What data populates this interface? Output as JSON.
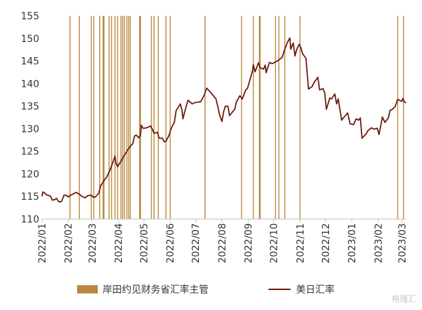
{
  "chart_data": {
    "type": "line",
    "xlabel": "",
    "ylabel": "",
    "ylim": [
      110,
      155
    ],
    "yticks": [
      110,
      115,
      120,
      125,
      130,
      135,
      140,
      145,
      150,
      155
    ],
    "xlim": [
      "2022-01-01",
      "2023-03-06"
    ],
    "xticks": [
      "2022/01",
      "2022/02",
      "2022/03",
      "2022/04",
      "2022/05",
      "2022/06",
      "2022/07",
      "2022/08",
      "2022/09",
      "2022/10",
      "2022/11",
      "2022/12",
      "2023/01",
      "2023/02",
      "2023/03"
    ],
    "grid": false,
    "legend_position": "bottom",
    "legend": [
      {
        "name": "岸田约见财务省汇率主管",
        "color": "#b8893e",
        "kind": "bar"
      },
      {
        "name": "美日汇率",
        "color": "#6b1a0c",
        "kind": "line"
      }
    ],
    "event_dates": [
      "2022-02-03",
      "2022-02-14",
      "2022-02-28",
      "2022-03-03",
      "2022-03-10",
      "2022-03-14",
      "2022-03-15",
      "2022-03-21",
      "2022-03-24",
      "2022-03-28",
      "2022-03-31",
      "2022-04-04",
      "2022-04-06",
      "2022-04-08",
      "2022-04-11",
      "2022-04-13",
      "2022-04-15",
      "2022-04-26",
      "2022-04-27",
      "2022-05-10",
      "2022-05-13",
      "2022-05-18",
      "2022-05-27",
      "2022-06-01",
      "2022-07-12",
      "2022-08-24",
      "2022-09-07",
      "2022-09-14",
      "2022-09-15",
      "2022-10-03",
      "2022-10-07",
      "2022-10-14",
      "2022-11-01",
      "2023-02-24",
      "2023-03-03"
    ],
    "series": [
      {
        "name": "美日汇率",
        "color": "#6b1a0c",
        "points": [
          [
            "2022-01-01",
            115.0
          ],
          [
            "2022-01-02",
            116.0
          ],
          [
            "2022-01-04",
            115.8
          ],
          [
            "2022-01-06",
            115.4
          ],
          [
            "2022-01-09",
            115.2
          ],
          [
            "2022-01-11",
            115.1
          ],
          [
            "2022-01-13",
            114.2
          ],
          [
            "2022-01-16",
            114.3
          ],
          [
            "2022-01-18",
            114.6
          ],
          [
            "2022-01-21",
            113.8
          ],
          [
            "2022-01-24",
            113.9
          ],
          [
            "2022-01-27",
            115.3
          ],
          [
            "2022-01-30",
            115.2
          ],
          [
            "2022-02-01",
            114.9
          ],
          [
            "2022-02-04",
            115.3
          ],
          [
            "2022-02-07",
            115.6
          ],
          [
            "2022-02-10",
            115.9
          ],
          [
            "2022-02-14",
            115.5
          ],
          [
            "2022-02-17",
            115.0
          ],
          [
            "2022-02-21",
            114.7
          ],
          [
            "2022-02-24",
            115.2
          ],
          [
            "2022-02-28",
            115.3
          ],
          [
            "2022-03-02",
            114.9
          ],
          [
            "2022-03-04",
            114.8
          ],
          [
            "2022-03-07",
            115.3
          ],
          [
            "2022-03-09",
            115.8
          ],
          [
            "2022-03-11",
            117.3
          ],
          [
            "2022-03-14",
            118.2
          ],
          [
            "2022-03-16",
            118.8
          ],
          [
            "2022-03-18",
            119.2
          ],
          [
            "2022-03-22",
            120.8
          ],
          [
            "2022-03-24",
            121.8
          ],
          [
            "2022-03-28",
            123.9
          ],
          [
            "2022-03-29",
            122.5
          ],
          [
            "2022-03-31",
            121.6
          ],
          [
            "2022-04-04",
            122.8
          ],
          [
            "2022-04-07",
            123.8
          ],
          [
            "2022-04-11",
            125.0
          ],
          [
            "2022-04-14",
            125.9
          ],
          [
            "2022-04-18",
            126.7
          ],
          [
            "2022-04-20",
            128.4
          ],
          [
            "2022-04-22",
            128.6
          ],
          [
            "2022-04-25",
            128.0
          ],
          [
            "2022-04-27",
            128.5
          ],
          [
            "2022-04-28",
            130.8
          ],
          [
            "2022-04-30",
            130.1
          ],
          [
            "2022-05-04",
            130.2
          ],
          [
            "2022-05-09",
            130.6
          ],
          [
            "2022-05-11",
            129.9
          ],
          [
            "2022-05-13",
            129.0
          ],
          [
            "2022-05-17",
            129.2
          ],
          [
            "2022-05-19",
            127.9
          ],
          [
            "2022-05-23",
            127.9
          ],
          [
            "2022-05-25",
            127.1
          ],
          [
            "2022-05-27",
            127.2
          ],
          [
            "2022-05-31",
            128.7
          ],
          [
            "2022-06-02",
            130.0
          ],
          [
            "2022-06-06",
            131.5
          ],
          [
            "2022-06-08",
            134.0
          ],
          [
            "2022-06-10",
            134.6
          ],
          [
            "2022-06-13",
            135.5
          ],
          [
            "2022-06-15",
            134.0
          ],
          [
            "2022-06-16",
            132.2
          ],
          [
            "2022-06-20",
            135.1
          ],
          [
            "2022-06-22",
            136.3
          ],
          [
            "2022-06-27",
            135.5
          ],
          [
            "2022-06-30",
            135.8
          ],
          [
            "2022-07-04",
            135.9
          ],
          [
            "2022-07-07",
            136.0
          ],
          [
            "2022-07-11",
            137.4
          ],
          [
            "2022-07-14",
            139.0
          ],
          [
            "2022-07-18",
            138.2
          ],
          [
            "2022-07-21",
            137.5
          ],
          [
            "2022-07-25",
            136.6
          ],
          [
            "2022-07-28",
            134.2
          ],
          [
            "2022-07-29",
            133.2
          ],
          [
            "2022-08-01",
            131.6
          ],
          [
            "2022-08-03",
            133.8
          ],
          [
            "2022-08-05",
            135.0
          ],
          [
            "2022-08-08",
            135.0
          ],
          [
            "2022-08-10",
            132.9
          ],
          [
            "2022-08-12",
            133.4
          ],
          [
            "2022-08-16",
            134.3
          ],
          [
            "2022-08-18",
            135.9
          ],
          [
            "2022-08-22",
            137.3
          ],
          [
            "2022-08-25",
            136.6
          ],
          [
            "2022-08-29",
            138.6
          ],
          [
            "2022-08-31",
            138.9
          ],
          [
            "2022-09-02",
            140.2
          ],
          [
            "2022-09-06",
            142.8
          ],
          [
            "2022-09-07",
            144.2
          ],
          [
            "2022-09-09",
            142.6
          ],
          [
            "2022-09-13",
            144.6
          ],
          [
            "2022-09-15",
            143.5
          ],
          [
            "2022-09-19",
            143.2
          ],
          [
            "2022-09-21",
            144.1
          ],
          [
            "2022-09-22",
            142.4
          ],
          [
            "2022-09-26",
            144.7
          ],
          [
            "2022-09-29",
            144.4
          ],
          [
            "2022-10-03",
            144.8
          ],
          [
            "2022-10-06",
            145.1
          ],
          [
            "2022-10-11",
            145.8
          ],
          [
            "2022-10-13",
            147.1
          ],
          [
            "2022-10-17",
            149.1
          ],
          [
            "2022-10-20",
            150.1
          ],
          [
            "2022-10-21",
            147.6
          ],
          [
            "2022-10-24",
            149.0
          ],
          [
            "2022-10-26",
            146.1
          ],
          [
            "2022-10-28",
            147.5
          ],
          [
            "2022-10-31",
            148.7
          ],
          [
            "2022-11-02",
            147.9
          ],
          [
            "2022-11-04",
            146.6
          ],
          [
            "2022-11-08",
            145.6
          ],
          [
            "2022-11-10",
            140.9
          ],
          [
            "2022-11-11",
            138.8
          ],
          [
            "2022-11-15",
            139.3
          ],
          [
            "2022-11-18",
            140.4
          ],
          [
            "2022-11-22",
            141.4
          ],
          [
            "2022-11-24",
            138.6
          ],
          [
            "2022-11-28",
            138.9
          ],
          [
            "2022-11-30",
            138.0
          ],
          [
            "2022-12-02",
            134.3
          ],
          [
            "2022-12-06",
            136.8
          ],
          [
            "2022-12-08",
            136.6
          ],
          [
            "2022-12-12",
            137.7
          ],
          [
            "2022-12-14",
            135.5
          ],
          [
            "2022-12-16",
            136.6
          ],
          [
            "2022-12-20",
            131.9
          ],
          [
            "2022-12-22",
            132.4
          ],
          [
            "2022-12-27",
            133.5
          ],
          [
            "2022-12-30",
            131.1
          ],
          [
            "2023-01-03",
            130.9
          ],
          [
            "2023-01-06",
            132.2
          ],
          [
            "2023-01-09",
            131.9
          ],
          [
            "2023-01-11",
            132.4
          ],
          [
            "2023-01-13",
            127.9
          ],
          [
            "2023-01-16",
            128.5
          ],
          [
            "2023-01-18",
            128.9
          ],
          [
            "2023-01-20",
            129.6
          ],
          [
            "2023-01-24",
            130.2
          ],
          [
            "2023-01-27",
            129.9
          ],
          [
            "2023-01-31",
            130.1
          ],
          [
            "2023-02-02",
            128.7
          ],
          [
            "2023-02-06",
            132.6
          ],
          [
            "2023-02-09",
            131.4
          ],
          [
            "2023-02-13",
            132.4
          ],
          [
            "2023-02-15",
            134.1
          ],
          [
            "2023-02-17",
            134.2
          ],
          [
            "2023-02-21",
            134.9
          ],
          [
            "2023-02-24",
            136.5
          ],
          [
            "2023-02-27",
            136.2
          ],
          [
            "2023-03-01",
            136.1
          ],
          [
            "2023-03-02",
            136.7
          ],
          [
            "2023-03-04",
            135.9
          ],
          [
            "2023-03-06",
            135.8
          ]
        ]
      }
    ]
  },
  "watermark": "格隆汇"
}
